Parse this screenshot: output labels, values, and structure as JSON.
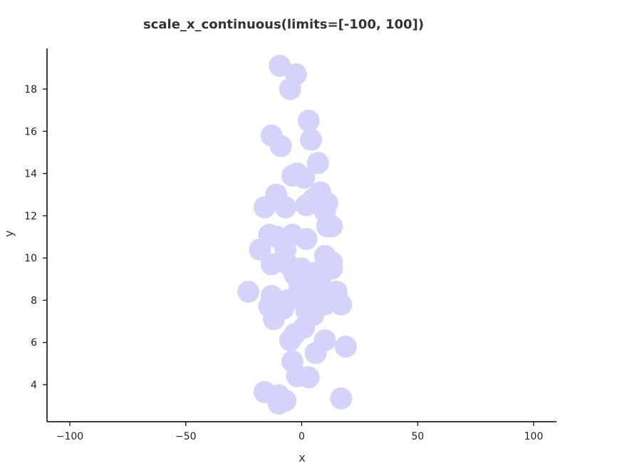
{
  "chart_data": {
    "type": "scatter",
    "title": "scale_x_continuous(limits=[-100, 100])",
    "xlabel": "x",
    "ylabel": "y",
    "xlim": [
      -100,
      100
    ],
    "ylim": [
      2.5,
      20
    ],
    "xticks": [
      -100,
      -50,
      0,
      50,
      100
    ],
    "xtick_labels": [
      "−100",
      "−50",
      "0",
      "50",
      "100"
    ],
    "yticks": [
      4,
      6,
      8,
      10,
      12,
      14,
      16,
      18
    ],
    "yticks_labels": [
      "4",
      "6",
      "8",
      "10",
      "12",
      "14",
      "16",
      "18"
    ],
    "grid": false,
    "legend": "none",
    "point_color": "#d4d4fa",
    "points": [
      {
        "x": -9.5,
        "y": 19.1
      },
      {
        "x": -2.5,
        "y": 18.7
      },
      {
        "x": -5,
        "y": 18.0
      },
      {
        "x": 3,
        "y": 16.5
      },
      {
        "x": -13,
        "y": 15.8
      },
      {
        "x": 4,
        "y": 15.6
      },
      {
        "x": -9,
        "y": 15.3
      },
      {
        "x": 7,
        "y": 14.5
      },
      {
        "x": -2,
        "y": 14.0
      },
      {
        "x": -4,
        "y": 13.9
      },
      {
        "x": 1,
        "y": 13.8
      },
      {
        "x": -11,
        "y": 13.0
      },
      {
        "x": 8,
        "y": 13.1
      },
      {
        "x": 5,
        "y": 12.8
      },
      {
        "x": 11,
        "y": 12.6
      },
      {
        "x": -16,
        "y": 12.4
      },
      {
        "x": -7,
        "y": 12.4
      },
      {
        "x": 2,
        "y": 12.5
      },
      {
        "x": 10,
        "y": 12.2
      },
      {
        "x": 13,
        "y": 11.5
      },
      {
        "x": 11,
        "y": 11.5
      },
      {
        "x": -14,
        "y": 11.1
      },
      {
        "x": -11,
        "y": 11.0
      },
      {
        "x": -4,
        "y": 11.1
      },
      {
        "x": 2,
        "y": 10.9
      },
      {
        "x": -18,
        "y": 10.4
      },
      {
        "x": -7,
        "y": 10.4
      },
      {
        "x": 10,
        "y": 10.1
      },
      {
        "x": 13,
        "y": 9.8
      },
      {
        "x": -13,
        "y": 9.7
      },
      {
        "x": -5,
        "y": 9.6
      },
      {
        "x": 0,
        "y": 9.5
      },
      {
        "x": 6,
        "y": 9.3
      },
      {
        "x": 13,
        "y": 9.5
      },
      {
        "x": -3,
        "y": 9.2
      },
      {
        "x": 2,
        "y": 9.0
      },
      {
        "x": 8,
        "y": 8.9
      },
      {
        "x": -1,
        "y": 8.7
      },
      {
        "x": 5,
        "y": 8.6
      },
      {
        "x": -23,
        "y": 8.4
      },
      {
        "x": -13,
        "y": 8.2
      },
      {
        "x": 15,
        "y": 8.4
      },
      {
        "x": -6,
        "y": 8.0
      },
      {
        "x": 1,
        "y": 8.1
      },
      {
        "x": 9,
        "y": 8.0
      },
      {
        "x": 17,
        "y": 7.8
      },
      {
        "x": -14,
        "y": 7.7
      },
      {
        "x": -8,
        "y": 7.6
      },
      {
        "x": 2,
        "y": 7.5
      },
      {
        "x": 10,
        "y": 7.8
      },
      {
        "x": 5,
        "y": 7.3
      },
      {
        "x": -12,
        "y": 7.1
      },
      {
        "x": 1,
        "y": 6.7
      },
      {
        "x": -3,
        "y": 6.4
      },
      {
        "x": -5,
        "y": 6.1
      },
      {
        "x": 10,
        "y": 6.1
      },
      {
        "x": 19,
        "y": 5.8
      },
      {
        "x": 6,
        "y": 5.5
      },
      {
        "x": -4,
        "y": 5.1
      },
      {
        "x": -2,
        "y": 4.4
      },
      {
        "x": 3,
        "y": 4.35
      },
      {
        "x": -16,
        "y": 3.65
      },
      {
        "x": -10,
        "y": 3.5
      },
      {
        "x": 17,
        "y": 3.35
      },
      {
        "x": -7,
        "y": 3.25
      },
      {
        "x": -10,
        "y": 3.1
      }
    ]
  }
}
